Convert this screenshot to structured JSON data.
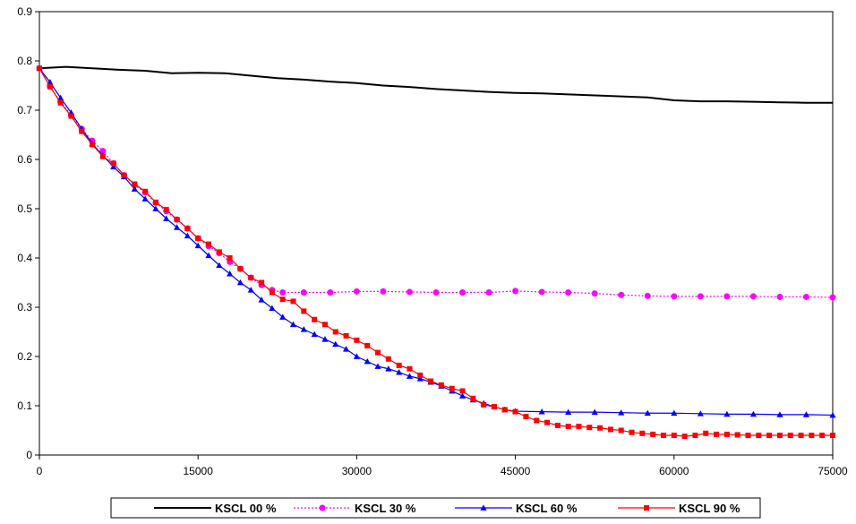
{
  "chart_data": {
    "type": "line",
    "title": "",
    "xlabel": "",
    "ylabel": "",
    "xlim": [
      0,
      75000
    ],
    "ylim": [
      0,
      0.9
    ],
    "x_ticks": [
      0,
      15000,
      30000,
      45000,
      60000,
      75000
    ],
    "x_tick_labels": [
      "0",
      "15000",
      "30000",
      "45000",
      "60000",
      "75000"
    ],
    "y_ticks": [
      0,
      0.1,
      0.2,
      0.3,
      0.4,
      0.5,
      0.6,
      0.7,
      0.8,
      0.9
    ],
    "y_tick_labels": [
      "0",
      "0.1",
      "0.2",
      "0.3",
      "0.4",
      "0.5",
      "0.6",
      "0.7",
      "0.8",
      "0.9"
    ],
    "grid": false,
    "legend_position": "bottom",
    "series": [
      {
        "name": "KSCL 00 %",
        "color": "#000000",
        "marker": "none",
        "line_style": "solid",
        "x": [
          0,
          2500,
          5000,
          7500,
          10000,
          12500,
          15000,
          17500,
          20000,
          22500,
          25000,
          27500,
          30000,
          32500,
          35000,
          37500,
          40000,
          42500,
          45000,
          47500,
          50000,
          52500,
          55000,
          57500,
          60000,
          62500,
          65000,
          67500,
          70000,
          72500,
          75000
        ],
        "y": [
          0.785,
          0.788,
          0.785,
          0.782,
          0.78,
          0.775,
          0.776,
          0.775,
          0.77,
          0.765,
          0.762,
          0.758,
          0.755,
          0.75,
          0.747,
          0.743,
          0.74,
          0.737,
          0.735,
          0.734,
          0.732,
          0.73,
          0.728,
          0.726,
          0.72,
          0.718,
          0.718,
          0.717,
          0.716,
          0.715,
          0.715
        ]
      },
      {
        "name": "KSCL 30 %",
        "color": "#ff00ff",
        "marker": "circle",
        "line_style": "dotted",
        "x": [
          0,
          1000,
          2000,
          3000,
          4000,
          5000,
          6000,
          7000,
          8000,
          9000,
          10000,
          11000,
          12000,
          13000,
          14000,
          15000,
          16000,
          17000,
          18000,
          19000,
          20000,
          21000,
          22000,
          23000,
          25000,
          27500,
          30000,
          32500,
          35000,
          37500,
          40000,
          42500,
          45000,
          47500,
          50000,
          52500,
          55000,
          57500,
          60000,
          62500,
          65000,
          67500,
          70000,
          72500,
          75000
        ],
        "y": [
          0.785,
          0.748,
          0.717,
          0.69,
          0.662,
          0.638,
          0.617,
          0.592,
          0.568,
          0.548,
          0.533,
          0.512,
          0.495,
          0.478,
          0.46,
          0.44,
          0.424,
          0.41,
          0.392,
          0.378,
          0.36,
          0.345,
          0.335,
          0.33,
          0.33,
          0.33,
          0.332,
          0.332,
          0.331,
          0.33,
          0.33,
          0.33,
          0.333,
          0.331,
          0.33,
          0.328,
          0.325,
          0.323,
          0.322,
          0.322,
          0.322,
          0.322,
          0.321,
          0.321,
          0.32
        ]
      },
      {
        "name": "KSCL 60 %",
        "color": "#0000ff",
        "marker": "triangle",
        "line_style": "solid",
        "x": [
          0,
          1000,
          2000,
          3000,
          4000,
          5000,
          6000,
          7000,
          8000,
          9000,
          10000,
          11000,
          12000,
          13000,
          14000,
          15000,
          16000,
          17000,
          18000,
          19000,
          20000,
          21000,
          22000,
          23000,
          24000,
          25000,
          26000,
          27000,
          28000,
          29000,
          30000,
          31000,
          32000,
          33000,
          34000,
          35000,
          36000,
          37000,
          38000,
          39000,
          40000,
          41000,
          42000,
          43000,
          44000,
          45000,
          47500,
          50000,
          52500,
          55000,
          57500,
          60000,
          62500,
          65000,
          67500,
          70000,
          72500,
          75000
        ],
        "y": [
          0.785,
          0.757,
          0.725,
          0.695,
          0.662,
          0.632,
          0.608,
          0.585,
          0.565,
          0.54,
          0.52,
          0.5,
          0.48,
          0.462,
          0.445,
          0.425,
          0.405,
          0.385,
          0.368,
          0.35,
          0.335,
          0.315,
          0.298,
          0.28,
          0.265,
          0.255,
          0.245,
          0.235,
          0.225,
          0.215,
          0.2,
          0.19,
          0.18,
          0.175,
          0.168,
          0.16,
          0.155,
          0.148,
          0.14,
          0.13,
          0.12,
          0.112,
          0.105,
          0.098,
          0.092,
          0.089,
          0.088,
          0.087,
          0.087,
          0.086,
          0.085,
          0.085,
          0.084,
          0.083,
          0.083,
          0.082,
          0.082,
          0.081
        ]
      },
      {
        "name": "KSCL 90 %",
        "color": "#ff0000",
        "marker": "square",
        "line_style": "solid",
        "x": [
          0,
          1000,
          2000,
          3000,
          4000,
          5000,
          6000,
          7000,
          8000,
          9000,
          10000,
          11000,
          12000,
          13000,
          14000,
          15000,
          16000,
          17000,
          18000,
          19000,
          20000,
          21000,
          22000,
          23000,
          24000,
          25000,
          26000,
          27000,
          28000,
          29000,
          30000,
          31000,
          32000,
          33000,
          34000,
          35000,
          36000,
          37000,
          38000,
          39000,
          40000,
          41000,
          42000,
          43000,
          44000,
          45000,
          46000,
          47000,
          48000,
          49000,
          50000,
          51000,
          52000,
          53000,
          54000,
          55000,
          56000,
          57000,
          58000,
          59000,
          60000,
          61000,
          62000,
          63000,
          64000,
          65000,
          66000,
          67000,
          68000,
          69000,
          70000,
          71000,
          72000,
          73000,
          74000,
          75000
        ],
        "y": [
          0.785,
          0.748,
          0.715,
          0.688,
          0.657,
          0.63,
          0.606,
          0.592,
          0.568,
          0.55,
          0.535,
          0.513,
          0.498,
          0.478,
          0.46,
          0.44,
          0.428,
          0.412,
          0.4,
          0.378,
          0.36,
          0.35,
          0.33,
          0.316,
          0.312,
          0.292,
          0.275,
          0.265,
          0.25,
          0.242,
          0.233,
          0.222,
          0.208,
          0.195,
          0.182,
          0.175,
          0.162,
          0.15,
          0.142,
          0.135,
          0.13,
          0.115,
          0.102,
          0.098,
          0.092,
          0.088,
          0.078,
          0.07,
          0.066,
          0.06,
          0.058,
          0.058,
          0.056,
          0.055,
          0.052,
          0.05,
          0.046,
          0.044,
          0.042,
          0.04,
          0.04,
          0.038,
          0.04,
          0.044,
          0.042,
          0.042,
          0.041,
          0.04,
          0.04,
          0.04,
          0.04,
          0.04,
          0.04,
          0.04,
          0.04,
          0.04
        ]
      }
    ]
  }
}
